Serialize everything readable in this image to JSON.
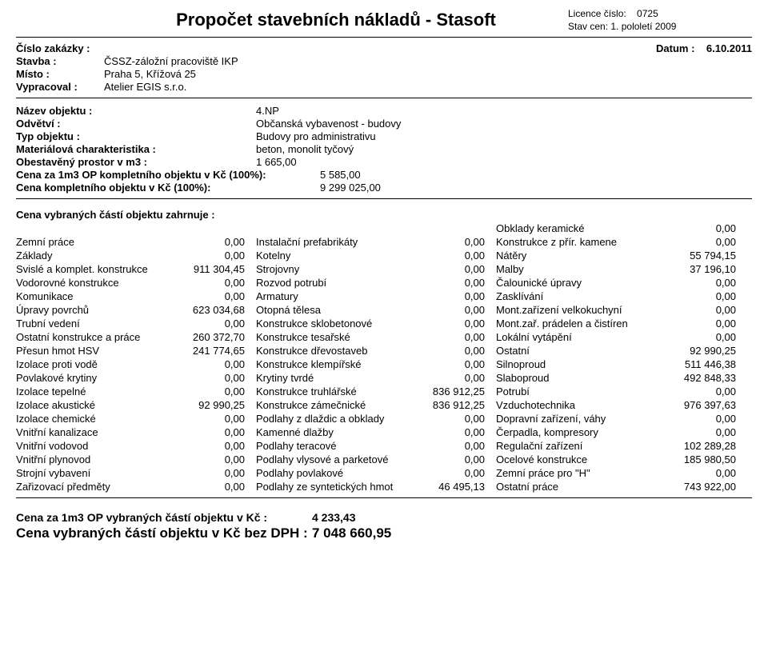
{
  "header": {
    "title": "Propočet stavebních nákladů - Stasoft",
    "licence_label": "Licence číslo:",
    "licence_no": "0725",
    "stav_cen_label": "Stav cen:",
    "stav_cen_val": "1. pololetí 2009",
    "datum_label": "Datum :",
    "datum_val": "6.10.2011"
  },
  "meta": {
    "cislo_zakazky_label": "Číslo zakázky :",
    "cislo_zakazky_val": "",
    "stavba_label": "Stavba :",
    "stavba_val": "ČSSZ-záložní pracoviště IKP",
    "misto_label": "Místo :",
    "misto_val": "Praha 5, Křížová 25",
    "vypracoval_label": "Vypracoval :",
    "vypracoval_val": "Atelier EGIS s.r.o."
  },
  "obj": {
    "nazev_label": "Název objektu :",
    "nazev_val": "4.NP",
    "odvetvi_label": "Odvětví :",
    "odvetvi_val": "Občanská vybavenost - budovy",
    "typ_label": "Typ objektu :",
    "typ_val": "Budovy pro administrativu",
    "mat_label": "Materiálová charakteristika :",
    "mat_val": "beton, monolit tyčový",
    "prostor_label": "Obestavěný prostor v m3 :",
    "prostor_val": "1 665,00",
    "cena1m3_label": "Cena za 1m3 OP kompletního objektu v Kč (100%):",
    "cena1m3_val": "5 585,00",
    "cenakompl_label": "Cena kompletního objektu v Kč (100%):",
    "cenakompl_val": "9 299 025,00"
  },
  "parts_header": "Cena vybraných částí objektu zahrnuje :",
  "rows": [
    {
      "l1": "",
      "n1": "",
      "l2": "",
      "n2": "",
      "l3": "Obklady keramické",
      "n3": "0,00"
    },
    {
      "l1": "Zemní práce",
      "n1": "0,00",
      "l2": "Instalační prefabrikáty",
      "n2": "0,00",
      "l3": "Konstrukce z přír. kamene",
      "n3": "0,00"
    },
    {
      "l1": "Základy",
      "n1": "0,00",
      "l2": "Kotelny",
      "n2": "0,00",
      "l3": "Nátěry",
      "n3": "55 794,15"
    },
    {
      "l1": "Svislé a komplet. konstrukce",
      "n1": "911 304,45",
      "l2": "Strojovny",
      "n2": "0,00",
      "l3": "Malby",
      "n3": "37 196,10"
    },
    {
      "l1": "Vodorovné konstrukce",
      "n1": "0,00",
      "l2": "Rozvod potrubí",
      "n2": "0,00",
      "l3": "Čalounické úpravy",
      "n3": "0,00"
    },
    {
      "l1": "Komunikace",
      "n1": "0,00",
      "l2": "Armatury",
      "n2": "0,00",
      "l3": "Zasklívání",
      "n3": "0,00"
    },
    {
      "l1": "Úpravy povrchů",
      "n1": "623 034,68",
      "l2": "Otopná tělesa",
      "n2": "0,00",
      "l3": "Mont.zařízení velkokuchyní",
      "n3": "0,00"
    },
    {
      "l1": "Trubní vedení",
      "n1": "0,00",
      "l2": "Konstrukce sklobetonové",
      "n2": "0,00",
      "l3": "Mont.zař. prádelen a čistíren",
      "n3": "0,00"
    },
    {
      "l1": "Ostatní konstrukce a práce",
      "n1": "260 372,70",
      "l2": "Konstrukce tesařské",
      "n2": "0,00",
      "l3": "Lokální vytápění",
      "n3": "0,00"
    },
    {
      "l1": "Přesun hmot HSV",
      "n1": "241 774,65",
      "l2": "Konstrukce dřevostaveb",
      "n2": "0,00",
      "l3": "Ostatní",
      "n3": "92 990,25"
    },
    {
      "l1": "Izolace proti vodě",
      "n1": "0,00",
      "l2": "Konstrukce klempířské",
      "n2": "0,00",
      "l3": "Silnoproud",
      "n3": "511 446,38"
    },
    {
      "l1": "Povlakové krytiny",
      "n1": "0,00",
      "l2": "Krytiny tvrdé",
      "n2": "0,00",
      "l3": "Slaboproud",
      "n3": "492 848,33"
    },
    {
      "l1": "Izolace tepelné",
      "n1": "0,00",
      "l2": "Konstrukce truhlářské",
      "n2": "836 912,25",
      "l3": "Potrubí",
      "n3": "0,00"
    },
    {
      "l1": "Izolace akustické",
      "n1": "92 990,25",
      "l2": "Konstrukce zámečnické",
      "n2": "836 912,25",
      "l3": "Vzduchotechnika",
      "n3": "976 397,63"
    },
    {
      "l1": "Izolace chemické",
      "n1": "0,00",
      "l2": "Podlahy z dlaždic a obklady",
      "n2": "0,00",
      "l3": "Dopravní zařízení, váhy",
      "n3": "0,00"
    },
    {
      "l1": "Vnitřní kanalizace",
      "n1": "0,00",
      "l2": "Kamenné dlažby",
      "n2": "0,00",
      "l3": "Čerpadla, kompresory",
      "n3": "0,00"
    },
    {
      "l1": "Vnitřní vodovod",
      "n1": "0,00",
      "l2": "Podlahy teracové",
      "n2": "0,00",
      "l3": "Regulační zařízení",
      "n3": "102 289,28"
    },
    {
      "l1": "Vnitřní plynovod",
      "n1": "0,00",
      "l2": "Podlahy vlysové a parketové",
      "n2": "0,00",
      "l3": "Ocelové konstrukce",
      "n3": "185 980,50"
    },
    {
      "l1": "Strojní vybavení",
      "n1": "0,00",
      "l2": "Podlahy povlakové",
      "n2": "0,00",
      "l3": "Zemní práce pro \"H\"",
      "n3": "0,00"
    },
    {
      "l1": "Zařizovací předměty",
      "n1": "0,00",
      "l2": "Podlahy ze syntetických hmot",
      "n2": "46 495,13",
      "l3": "Ostatní práce",
      "n3": "743 922,00"
    }
  ],
  "totals": {
    "t1_label": "Cena za 1m3 OP vybraných částí objektu v Kč :",
    "t1_val": "4 233,43",
    "t2_label": "Cena vybraných částí objektu v Kč bez DPH :",
    "t2_val": "7 048 660,95"
  }
}
